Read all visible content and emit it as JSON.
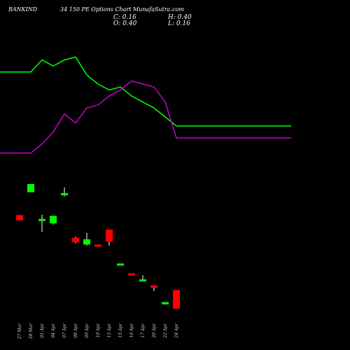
{
  "header": {
    "symbol": "BANKIND",
    "subtitle": "34 150 PE Options  Chart MunafaSutra.com"
  },
  "ohlc_readout": {
    "close": "C: 0.16",
    "open": "O: 0.40",
    "high": "H: 0.40",
    "low": "L: 0.16"
  },
  "colors": {
    "background": "#000000",
    "up": "#00ff00",
    "down": "#ff0000",
    "green_line": "#00ff00",
    "magenta_line": "#cc00cc",
    "text": "#ffffff"
  },
  "chart_data": {
    "type": "candlestick",
    "title": "",
    "xlabel": "",
    "ylabel": "",
    "categories": [
      "27 Mar",
      "28 Mar",
      "01 Apr",
      "04 Apr",
      "07 Apr",
      "08 Apr",
      "09 Apr",
      "10 Apr",
      "15 Apr",
      "15 Apr",
      "16 Apr",
      "17 Apr",
      "20 Apr",
      "22 Apr",
      "24 Apr"
    ],
    "candles": [
      {
        "open": 1.39,
        "high": 1.39,
        "low": 1.33,
        "close": 1.33
      },
      {
        "open": 1.7,
        "high": 1.8,
        "low": 1.7,
        "close": 1.8
      },
      {
        "open": 1.33,
        "high": 1.4,
        "low": 1.17,
        "close": 1.34
      },
      {
        "open": 1.29,
        "high": 1.38,
        "low": 1.27,
        "close": 1.38
      },
      {
        "open": 1.67,
        "high": 1.76,
        "low": 1.64,
        "close": 1.68
      },
      {
        "open": 1.09,
        "high": 1.11,
        "low": 1.02,
        "close": 1.04
      },
      {
        "open": 1.01,
        "high": 1.16,
        "low": 0.99,
        "close": 1.07
      },
      {
        "open": 1.0,
        "high": 1.0,
        "low": 0.99,
        "close": 0.99
      },
      {
        "open": 1.2,
        "high": 1.2,
        "low": 0.99,
        "close": 1.05
      },
      {
        "open": 0.74,
        "high": 0.75,
        "low": 0.73,
        "close": 0.75
      },
      {
        "open": 0.62,
        "high": 0.62,
        "low": 0.61,
        "close": 0.61
      },
      {
        "open": 0.53,
        "high": 0.6,
        "low": 0.52,
        "close": 0.54
      },
      {
        "open": 0.46,
        "high": 0.46,
        "low": 0.39,
        "close": 0.44
      },
      {
        "open": 0.22,
        "high": 0.24,
        "low": 0.21,
        "close": 0.24
      },
      {
        "open": 0.4,
        "high": 0.4,
        "low": 0.16,
        "close": 0.16
      }
    ],
    "series": [
      {
        "values": [
          2.8,
          2.8,
          3.0,
          2.9,
          3.0,
          3.05,
          2.75,
          2.6,
          2.5,
          2.55,
          2.4,
          2.3,
          2.2,
          2.05,
          1.9
        ]
      },
      {
        "values": [
          1.45,
          1.45,
          1.6,
          1.8,
          2.1,
          1.95,
          2.2,
          2.25,
          2.4,
          2.5,
          2.65,
          2.6,
          2.55,
          2.3,
          1.7
        ]
      }
    ]
  }
}
